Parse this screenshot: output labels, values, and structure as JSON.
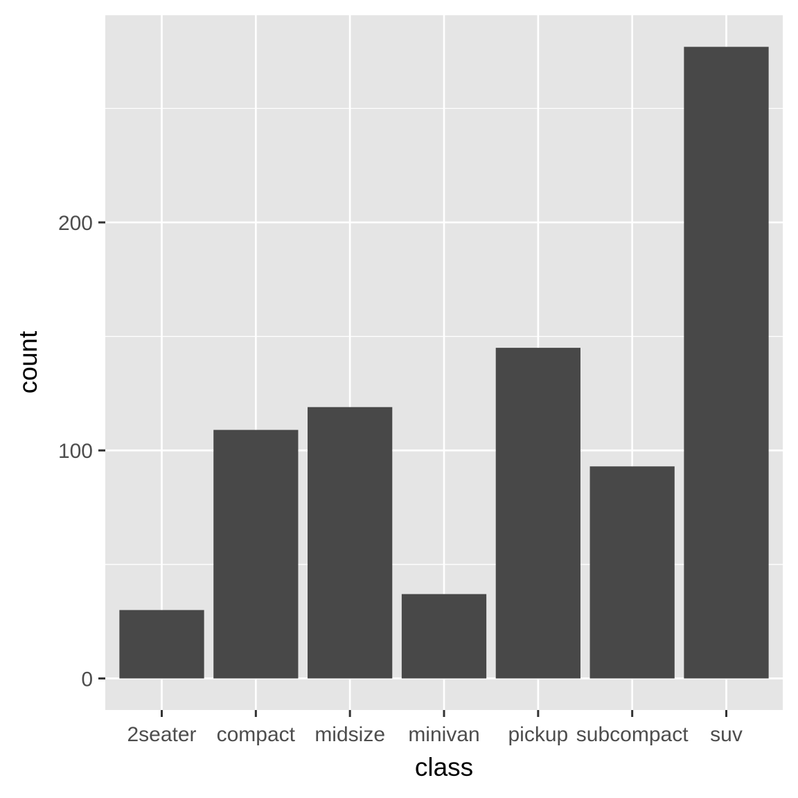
{
  "chart_data": {
    "type": "bar",
    "categories": [
      "2seater",
      "compact",
      "midsize",
      "minivan",
      "pickup",
      "subcompact",
      "suv"
    ],
    "values": [
      30,
      109,
      119,
      37,
      145,
      93,
      277
    ],
    "title": "",
    "xlabel": "class",
    "ylabel": "count",
    "ylim": [
      -13.85,
      290.85
    ],
    "yticks": [
      0,
      100,
      200
    ],
    "grid": true,
    "colors": {
      "panel_background": "#e5e5e5",
      "grid_major": "#ffffff",
      "bar_fill": "#484848",
      "tick_mark": "#333333",
      "tick_label": "#4d4d4d",
      "axis_title": "#000000"
    }
  }
}
